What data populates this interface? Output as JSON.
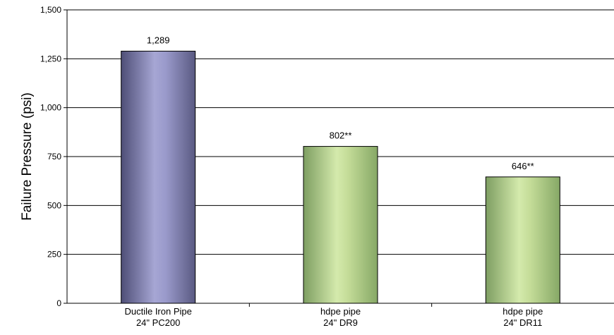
{
  "chart_data": {
    "type": "bar",
    "title": "",
    "xlabel": "",
    "ylabel": "Failure Pressure (psi)",
    "ylim": [
      0,
      1500
    ],
    "yticks": [
      0,
      250,
      500,
      750,
      1000,
      1250,
      1500
    ],
    "ytick_labels": [
      "0",
      "250",
      "500",
      "750",
      "1,000",
      "1,250",
      "1,500"
    ],
    "grid": true,
    "categories": [
      [
        "Ductile Iron Pipe",
        "24\" PC200"
      ],
      [
        "hdpe pipe",
        "24\" DR9"
      ],
      [
        "hdpe pipe",
        "24\" DR11"
      ]
    ],
    "values": [
      1289,
      802,
      646
    ],
    "data_labels": [
      "1,289",
      "802**",
      "646**"
    ],
    "bar_styles": [
      "purple",
      "green",
      "green"
    ],
    "colors": {
      "purple_edge": "#5a5a82",
      "purple_mid": "#a4a4d2",
      "green_edge": "#86a866",
      "green_mid": "#d2e8aa",
      "axis": "#000000"
    }
  }
}
